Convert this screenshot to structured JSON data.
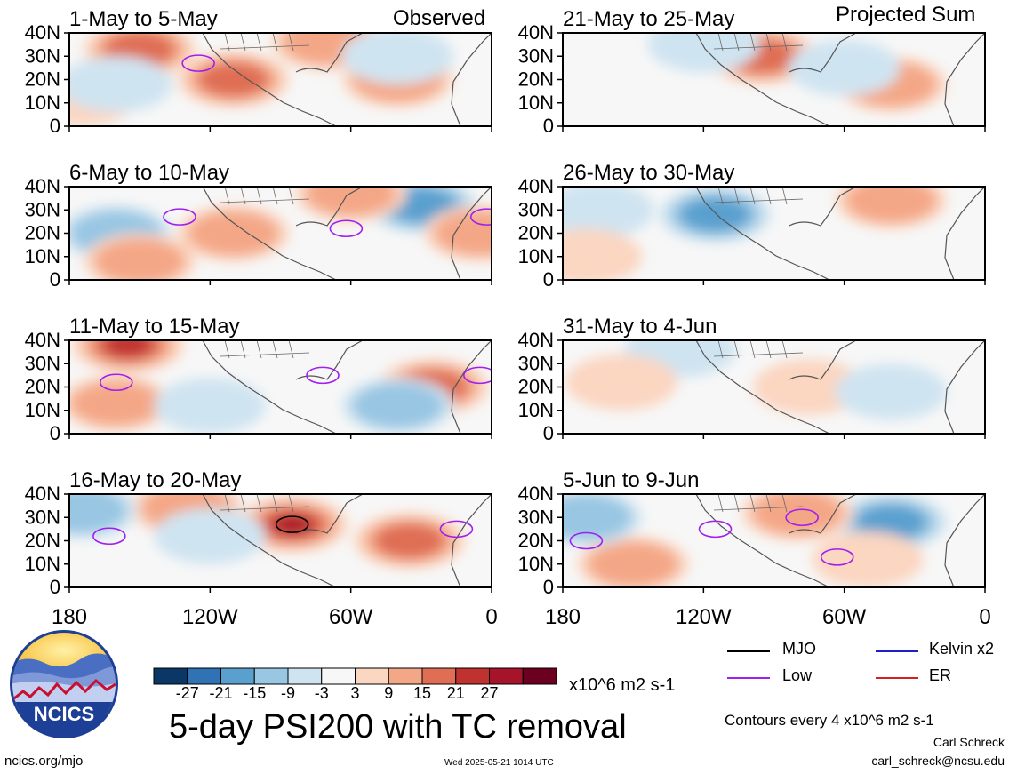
{
  "header": {
    "left_tag": "Observed",
    "right_tag": "Projected Sum"
  },
  "panels": [
    {
      "label": "1-May to 5-May"
    },
    {
      "label": "6-May to 10-May"
    },
    {
      "label": "11-May to 15-May"
    },
    {
      "label": "16-May to 20-May"
    },
    {
      "label": "21-May to 25-May"
    },
    {
      "label": "26-May to 30-May"
    },
    {
      "label": "31-May to 4-Jun"
    },
    {
      "label": "5-Jun to 9-Jun"
    }
  ],
  "axes": {
    "y_ticks": [
      "40N",
      "30N",
      "20N",
      "10N",
      "0"
    ],
    "x_ticks": [
      "180",
      "120W",
      "60W",
      "0"
    ]
  },
  "legend": {
    "items": [
      {
        "name": "MJO",
        "color": "#000000"
      },
      {
        "name": "Kelvin x2",
        "color": "#1f1fc8"
      },
      {
        "name": "Low",
        "color": "#a020f0"
      },
      {
        "name": "ER",
        "color": "#d62020"
      }
    ]
  },
  "colorbar": {
    "colors": [
      "#0b3766",
      "#2f73b5",
      "#5aa0cf",
      "#98c6e3",
      "#cfe4f1",
      "#f7f7f7",
      "#fbd6c1",
      "#f4a787",
      "#df6e55",
      "#c03230",
      "#a5142a",
      "#6b0020"
    ],
    "labels": [
      "-27",
      "-21",
      "-15",
      "-9",
      "-3",
      "3",
      "9",
      "15",
      "21",
      "27"
    ],
    "units": "x10^6 m2 s-1"
  },
  "footer": {
    "title": "5-day PSI200 with TC removal",
    "contours_note": "Contours every 4 x10^6 m2 s-1",
    "author_name": "Carl Schreck",
    "author_email": "carl_schreck@ncsu.edu",
    "site": "ncics.org/mjo",
    "timestamp": "Wed 2025-05-21 1014 UTC",
    "logo_text": "NCICS"
  },
  "chart_data": {
    "type": "heatmap",
    "variable": "5-day PSI200 with TC removal",
    "units": "x10^6 m2 s-1",
    "levels": [
      -27,
      -21,
      -15,
      -9,
      -3,
      3,
      9,
      15,
      21,
      27
    ],
    "x_range": [
      "180",
      "0"
    ],
    "y_range": [
      "0",
      "40N"
    ],
    "panels": [
      {
        "period": "1-May to 5-May",
        "group": "Observed",
        "anomalies": [
          {
            "lon": -150,
            "lat": 33,
            "value": 18
          },
          {
            "lon": -110,
            "lat": 20,
            "value": 16
          },
          {
            "lon": -70,
            "lat": 36,
            "value": 14
          },
          {
            "lon": -40,
            "lat": 20,
            "value": 10
          },
          {
            "lon": -175,
            "lat": 12,
            "value": 6
          },
          {
            "lon": -160,
            "lat": 18,
            "value": -6
          },
          {
            "lon": -40,
            "lat": 30,
            "value": -6
          }
        ],
        "contours": [
          {
            "type": "Low",
            "lon": -125,
            "lat": 27
          }
        ]
      },
      {
        "period": "6-May to 10-May",
        "group": "Observed",
        "anomalies": [
          {
            "lon": -160,
            "lat": 20,
            "value": -9
          },
          {
            "lon": -150,
            "lat": 8,
            "value": 10
          },
          {
            "lon": -110,
            "lat": 20,
            "value": 10
          },
          {
            "lon": -30,
            "lat": 32,
            "value": -16
          },
          {
            "lon": -60,
            "lat": 37,
            "value": 14
          },
          {
            "lon": -5,
            "lat": 20,
            "value": 12
          }
        ],
        "contours": [
          {
            "type": "Low",
            "lon": -133,
            "lat": 27
          },
          {
            "type": "Low",
            "lon": -62,
            "lat": 22
          },
          {
            "type": "Low",
            "lon": -2,
            "lat": 27
          }
        ]
      },
      {
        "period": "11-May to 15-May",
        "group": "Observed",
        "anomalies": [
          {
            "lon": -155,
            "lat": 38,
            "value": 24
          },
          {
            "lon": -160,
            "lat": 13,
            "value": 14
          },
          {
            "lon": -25,
            "lat": 20,
            "value": 18
          },
          {
            "lon": -40,
            "lat": 12,
            "value": -9
          },
          {
            "lon": -120,
            "lat": 12,
            "value": -5
          }
        ],
        "contours": [
          {
            "type": "Low",
            "lon": -160,
            "lat": 22
          },
          {
            "type": "Low",
            "lon": -72,
            "lat": 25
          },
          {
            "type": "Low",
            "lon": -5,
            "lat": 25
          }
        ]
      },
      {
        "period": "16-May to 20-May",
        "group": "Observed",
        "anomalies": [
          {
            "lon": -85,
            "lat": 27,
            "value": 28
          },
          {
            "lon": -35,
            "lat": 20,
            "value": 18
          },
          {
            "lon": -130,
            "lat": 34,
            "value": 14
          },
          {
            "lon": -175,
            "lat": 33,
            "value": -12
          },
          {
            "lon": -120,
            "lat": 22,
            "value": -8
          }
        ],
        "contours": [
          {
            "type": "Low",
            "lon": -163,
            "lat": 22
          },
          {
            "type": "Low",
            "lon": -15,
            "lat": 25
          },
          {
            "type": "MJO",
            "lon": -85,
            "lat": 27
          }
        ]
      },
      {
        "period": "21-May to 25-May",
        "group": "Projected Sum",
        "anomalies": [
          {
            "lon": -95,
            "lat": 30,
            "value": 18
          },
          {
            "lon": -40,
            "lat": 18,
            "value": 12
          },
          {
            "lon": -120,
            "lat": 35,
            "value": -8
          },
          {
            "lon": -60,
            "lat": 25,
            "value": -4
          }
        ],
        "contours": []
      },
      {
        "period": "26-May to 30-May",
        "group": "Projected Sum",
        "anomalies": [
          {
            "lon": -115,
            "lat": 28,
            "value": -18
          },
          {
            "lon": -40,
            "lat": 34,
            "value": 14
          },
          {
            "lon": -165,
            "lat": 30,
            "value": -6
          },
          {
            "lon": -170,
            "lat": 10,
            "value": 5
          }
        ],
        "contours": []
      },
      {
        "period": "31-May to 4-Jun",
        "group": "Projected Sum",
        "anomalies": [
          {
            "lon": -75,
            "lat": 20,
            "value": 8
          },
          {
            "lon": -40,
            "lat": 18,
            "value": -8
          },
          {
            "lon": -130,
            "lat": 36,
            "value": -6
          },
          {
            "lon": -155,
            "lat": 22,
            "value": 5
          }
        ],
        "contours": []
      },
      {
        "period": "5-Jun to 9-Jun",
        "group": "Projected Sum",
        "anomalies": [
          {
            "lon": -40,
            "lat": 28,
            "value": -16
          },
          {
            "lon": -150,
            "lat": 10,
            "value": 12
          },
          {
            "lon": -80,
            "lat": 32,
            "value": 10
          },
          {
            "lon": -170,
            "lat": 30,
            "value": -9
          },
          {
            "lon": -50,
            "lat": 12,
            "value": 5
          }
        ],
        "contours": [
          {
            "type": "Low",
            "lon": -170,
            "lat": 20
          },
          {
            "type": "Low",
            "lon": -115,
            "lat": 25
          },
          {
            "type": "Low",
            "lon": -78,
            "lat": 30
          },
          {
            "type": "Low",
            "lon": -63,
            "lat": 13
          }
        ]
      }
    ]
  }
}
